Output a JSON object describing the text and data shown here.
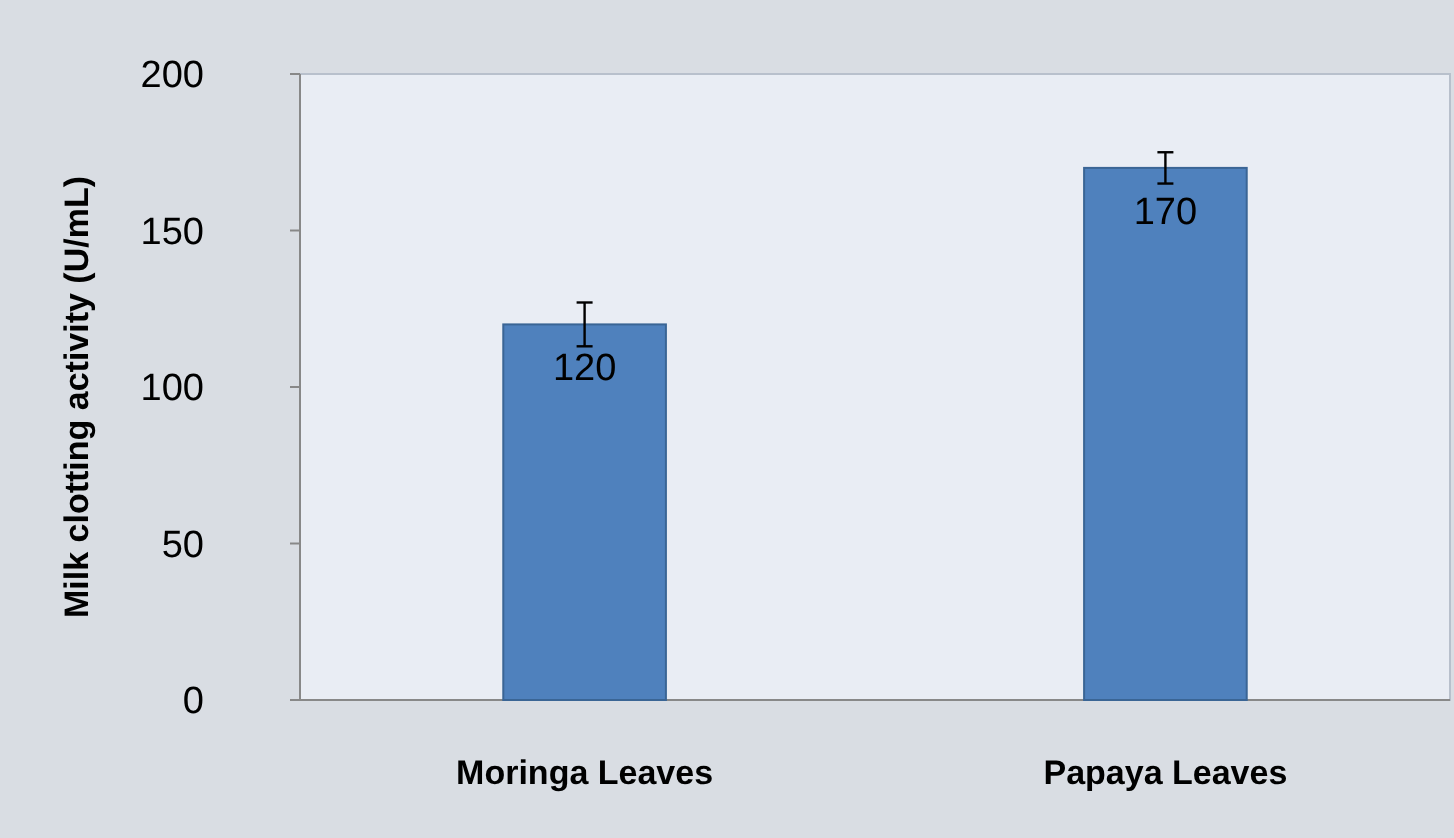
{
  "chart_data": {
    "type": "bar",
    "ylabel": "Milk clotting activity (U/mL)",
    "categories": [
      "Moringa Leaves",
      "Papaya Leaves"
    ],
    "values": [
      120,
      170
    ],
    "errors": [
      7,
      5
    ],
    "color": "#4f81bd",
    "data_labels": true,
    "ylim": [
      0,
      200
    ],
    "yticks": [
      0,
      50,
      100,
      150,
      200
    ],
    "grid": false
  }
}
